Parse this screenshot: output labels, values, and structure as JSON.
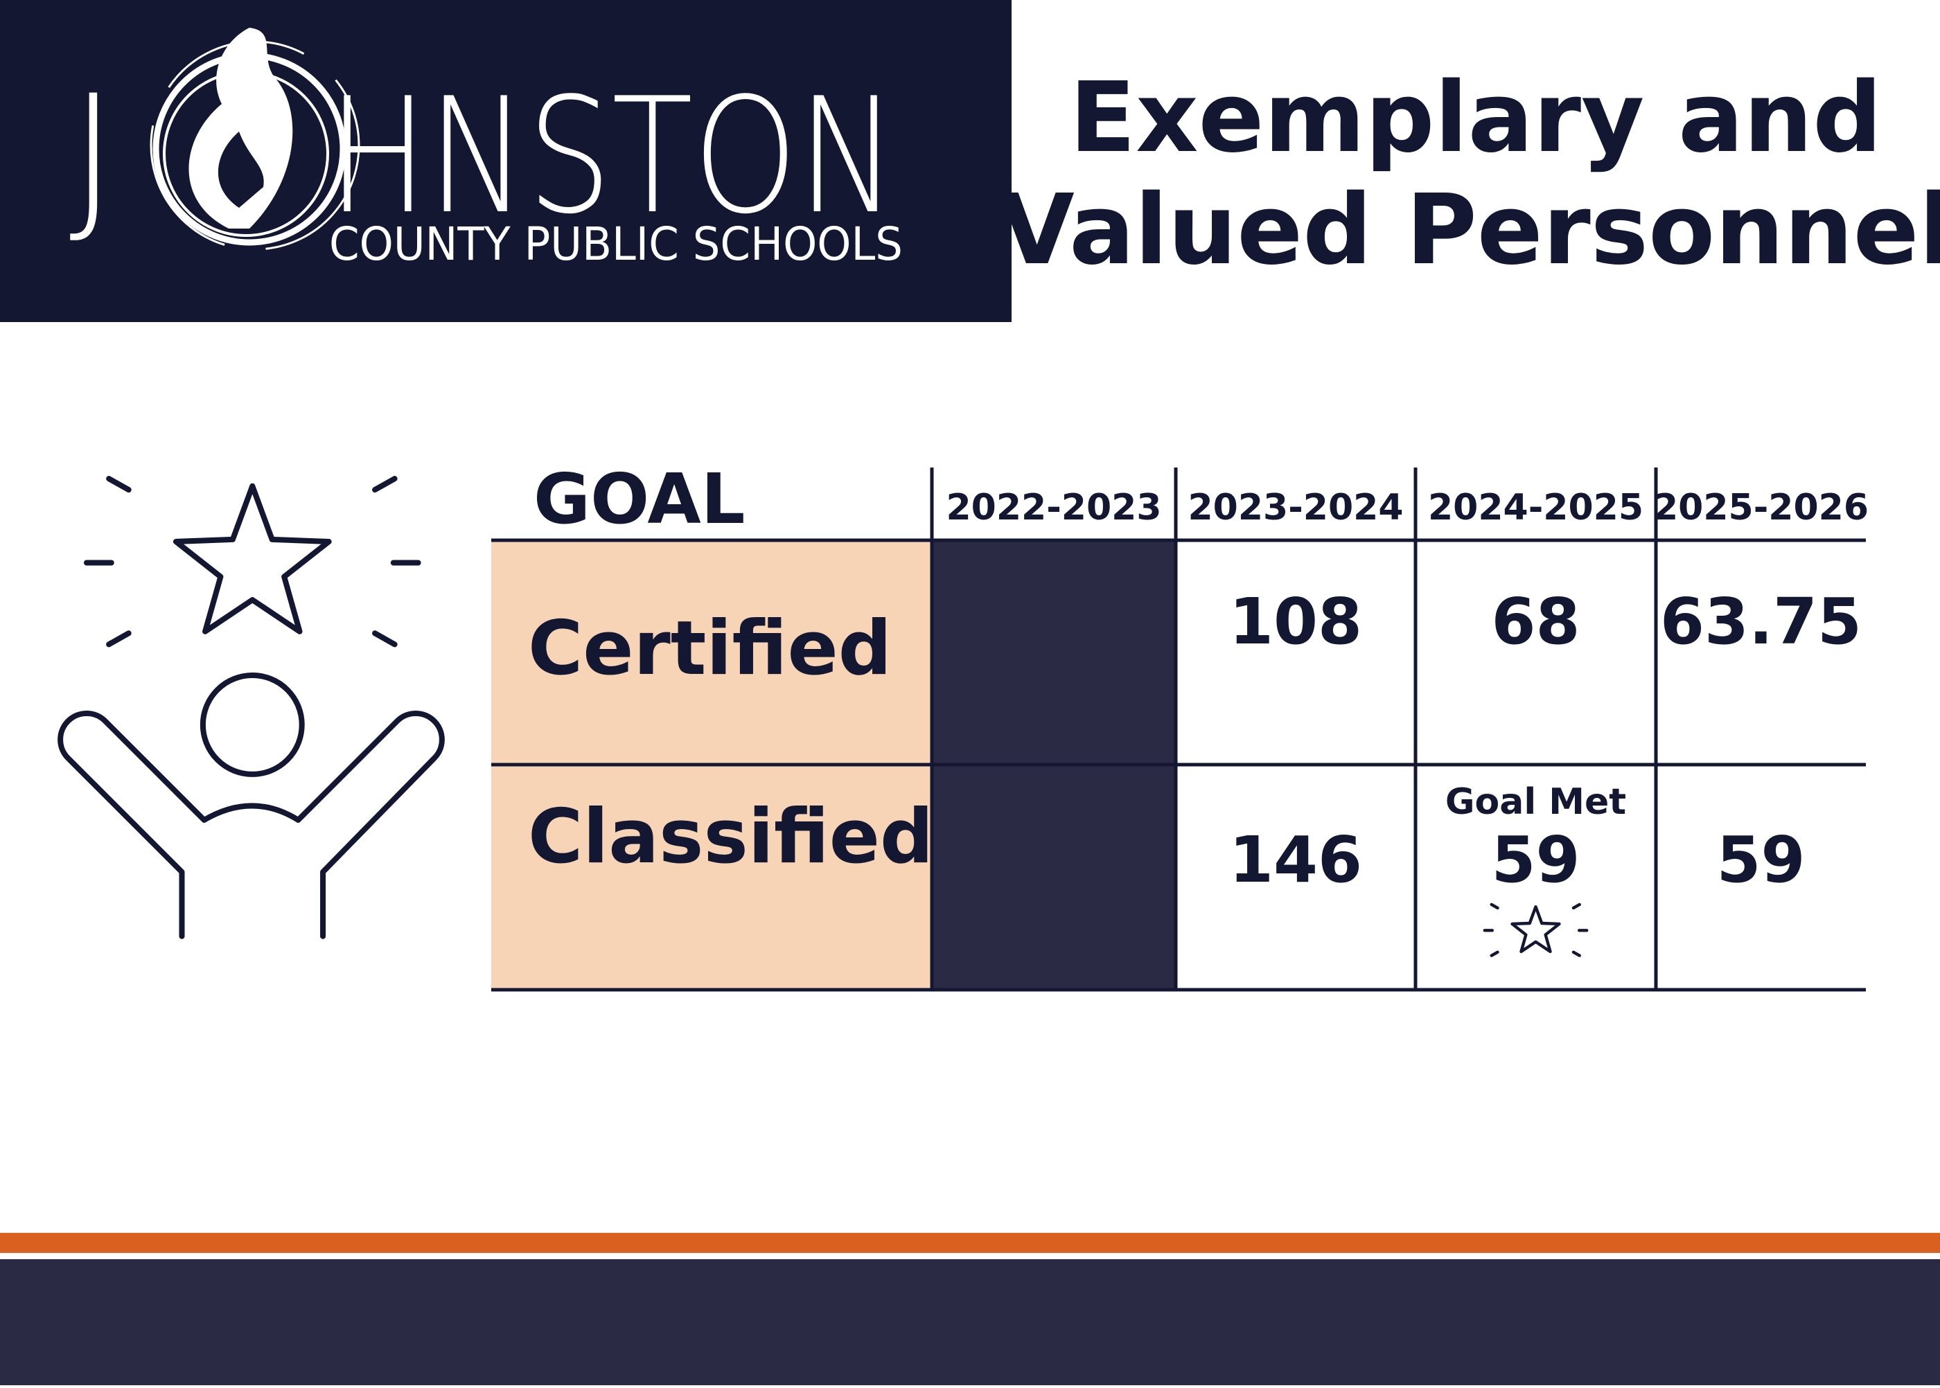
{
  "logo": {
    "initial": "J",
    "rest": "HNSTON",
    "subtitle": "COUNTY PUBLIC SCHOOLS"
  },
  "title": [
    "Exemplary and",
    "Valued Personnel"
  ],
  "table": {
    "header": "GOAL",
    "columns": [
      "2022-2023",
      "2023-2024",
      "2024-2025",
      "2025-2026"
    ],
    "rows": [
      {
        "label": "Certified",
        "cells": [
          null,
          108,
          68,
          63.75
        ]
      },
      {
        "label": "Classified",
        "cells": [
          null,
          146,
          {
            "note": "Goal Met",
            "value": 59
          },
          59
        ]
      }
    ]
  }
}
